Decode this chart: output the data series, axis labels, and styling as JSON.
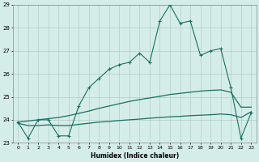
{
  "x": [
    0,
    1,
    2,
    3,
    4,
    5,
    6,
    7,
    8,
    9,
    10,
    11,
    12,
    13,
    14,
    15,
    16,
    17,
    18,
    19,
    20,
    21,
    22,
    23
  ],
  "y_main": [
    23.9,
    23.2,
    24.0,
    24.0,
    23.3,
    23.3,
    24.6,
    25.4,
    25.8,
    26.2,
    26.4,
    26.5,
    26.9,
    26.5,
    28.3,
    29.0,
    28.2,
    28.3,
    26.8,
    27.0,
    27.1,
    25.4,
    23.2,
    24.3
  ],
  "y_trend_upper": [
    23.9,
    23.95,
    24.0,
    24.05,
    24.1,
    24.18,
    24.28,
    24.38,
    24.5,
    24.6,
    24.7,
    24.8,
    24.88,
    24.95,
    25.02,
    25.1,
    25.15,
    25.2,
    25.25,
    25.28,
    25.3,
    25.2,
    24.55,
    24.55
  ],
  "y_trend_lower": [
    23.85,
    23.75,
    23.75,
    23.78,
    23.75,
    23.75,
    23.8,
    23.85,
    23.9,
    23.93,
    23.97,
    24.0,
    24.03,
    24.07,
    24.1,
    24.13,
    24.15,
    24.18,
    24.2,
    24.22,
    24.25,
    24.22,
    24.1,
    24.35
  ],
  "line_color": "#1a6e62",
  "bg_color": "#d5ede8",
  "grid_color": "#b0cdc8",
  "xlabel": "Humidex (Indice chaleur)",
  "ylim_min": 23,
  "ylim_max": 29,
  "yticks": [
    23,
    24,
    25,
    26,
    27,
    28,
    29
  ],
  "xticks": [
    0,
    1,
    2,
    3,
    4,
    5,
    6,
    7,
    8,
    9,
    10,
    11,
    12,
    13,
    14,
    15,
    16,
    17,
    18,
    19,
    20,
    21,
    22,
    23
  ],
  "xtick_labels": [
    "0",
    "1",
    "2",
    "3",
    "4",
    "5",
    "6",
    "7",
    "8",
    "9",
    "10",
    "11",
    "12",
    "13",
    "14",
    "15",
    "16",
    "17",
    "18",
    "19",
    "20",
    "21",
    "22",
    "23"
  ]
}
